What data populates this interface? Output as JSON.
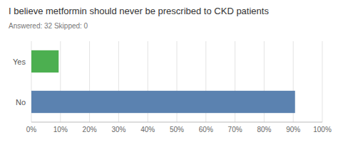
{
  "chart_data": {
    "type": "bar",
    "orientation": "horizontal",
    "title": "I believe metformin should never be prescribed to CKD patients",
    "subtitle": "Answered: 32    Skipped: 0",
    "categories": [
      "Yes",
      "No"
    ],
    "values": [
      9.375,
      90.625
    ],
    "colors": [
      "#4caf50",
      "#5b82b0"
    ],
    "xlim": [
      0,
      100
    ],
    "xticks": [
      {
        "value": 0,
        "label": "0%"
      },
      {
        "value": 10,
        "label": "10%"
      },
      {
        "value": 20,
        "label": "20%"
      },
      {
        "value": 30,
        "label": "30%"
      },
      {
        "value": 40,
        "label": "40%"
      },
      {
        "value": 50,
        "label": "50%"
      },
      {
        "value": 60,
        "label": "60%"
      },
      {
        "value": 70,
        "label": "70%"
      },
      {
        "value": 80,
        "label": "80%"
      },
      {
        "value": 90,
        "label": "90%"
      },
      {
        "value": 100,
        "label": "100%"
      }
    ],
    "grid": true
  }
}
